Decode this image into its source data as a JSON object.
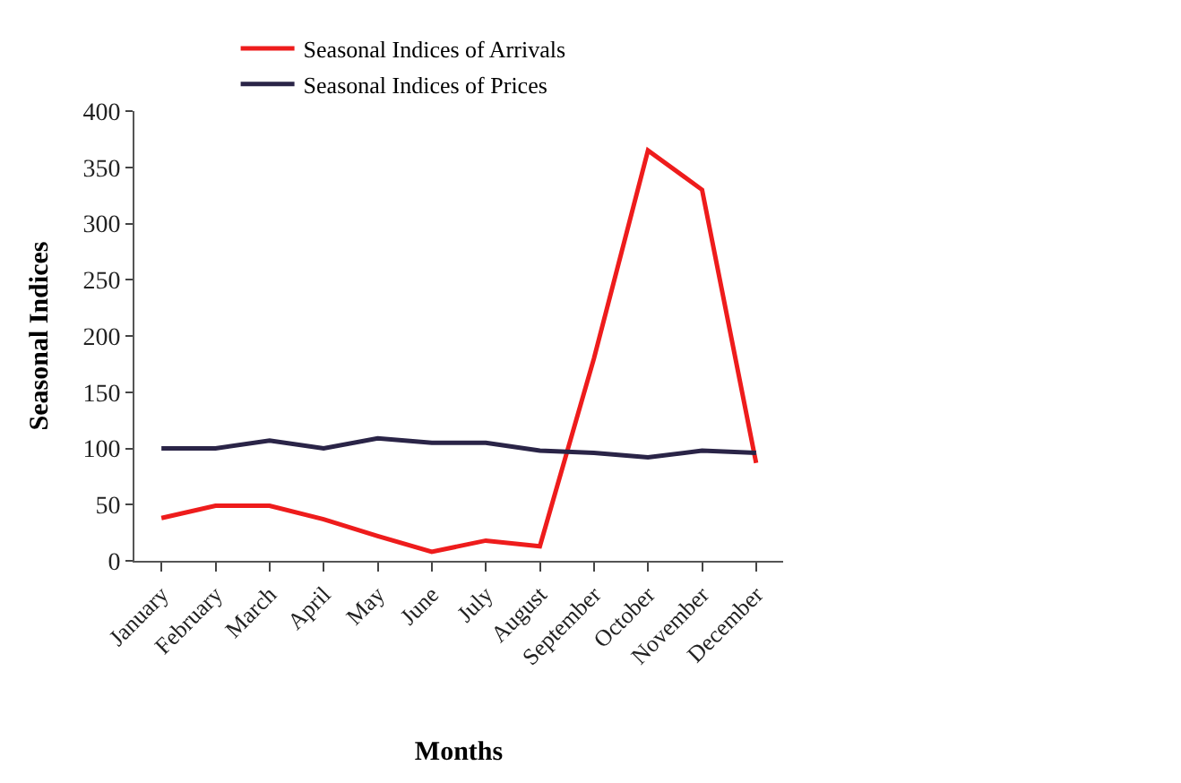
{
  "chart_data": {
    "type": "line",
    "xlabel": "Months",
    "ylabel": "Seasonal Indices",
    "categories": [
      "January",
      "February",
      "March",
      "April",
      "May",
      "June",
      "July",
      "August",
      "September",
      "October",
      "November",
      "December"
    ],
    "series": [
      {
        "name": "Seasonal Indices of Arrivals",
        "color": "#ee1c1c",
        "values": [
          38,
          49,
          49,
          37,
          22,
          8,
          18,
          13,
          180,
          365,
          330,
          87
        ]
      },
      {
        "name": "Seasonal Indices of Prices",
        "color": "#2a2447",
        "values": [
          100,
          100,
          107,
          100,
          109,
          105,
          105,
          98,
          96,
          92,
          98,
          96
        ]
      }
    ],
    "ylim": [
      0,
      400
    ],
    "yticks": [
      0,
      50,
      100,
      150,
      200,
      250,
      300,
      350,
      400
    ],
    "legend": "top",
    "marker": "none",
    "line_style": "solid"
  }
}
